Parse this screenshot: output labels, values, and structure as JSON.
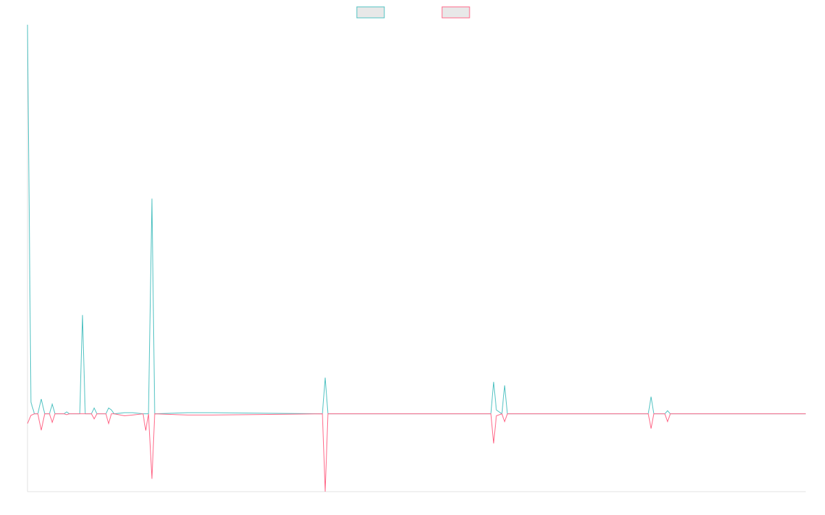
{
  "chart_data": {
    "type": "line",
    "x": [
      0,
      5,
      10,
      15,
      20,
      25,
      32,
      36,
      40,
      53,
      57,
      61,
      76,
      80,
      84,
      93,
      97,
      101,
      114,
      118,
      122,
      126,
      141,
      153,
      168,
      172,
      176,
      181,
      185,
      233,
      269,
      429,
      433,
      437,
      674,
      678,
      682,
      690,
      694,
      698,
      903,
      907,
      911,
      927,
      931,
      935,
      1132
    ],
    "xlim": [
      0,
      1132
    ],
    "ylim": [
      -20,
      100
    ],
    "series": [
      {
        "color": "#4bc0c0",
        "values": [
          100,
          3,
          0,
          0,
          3.8,
          0,
          0,
          2.5,
          0,
          0,
          0.5,
          0,
          0,
          25.4,
          0,
          0,
          1.5,
          0,
          0,
          1.5,
          1,
          0,
          0.3,
          0.3,
          0,
          0,
          0,
          55.3,
          0,
          0.3,
          0.3,
          0,
          9.3,
          0,
          0,
          8.2,
          1,
          0,
          7.3,
          0,
          0,
          4.4,
          0,
          0,
          0.8,
          0,
          0
        ]
      },
      {
        "color": "#ff6384",
        "values": [
          -2.5,
          -0.4,
          0,
          0,
          -4.2,
          0,
          0,
          -2.2,
          0,
          0,
          -0.2,
          0,
          0,
          0,
          0,
          0,
          -1.3,
          0,
          0,
          -2.5,
          0,
          0,
          -0.5,
          -0.3,
          0,
          -4.3,
          0,
          -16.7,
          0,
          -0.3,
          -0.3,
          0,
          -20,
          0,
          0,
          -7.6,
          -0.5,
          0,
          -2,
          0,
          0,
          -3.8,
          0,
          0,
          -2,
          0,
          0
        ]
      }
    ],
    "legend": "top"
  }
}
